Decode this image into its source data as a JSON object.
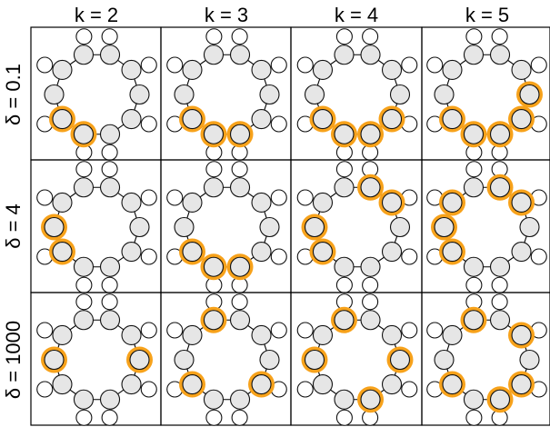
{
  "columns": [
    {
      "label": "k = 2",
      "k": 2
    },
    {
      "label": "k = 3",
      "k": 3
    },
    {
      "label": "k = 4",
      "k": 4
    },
    {
      "label": "k = 5",
      "k": 5
    }
  ],
  "rows": [
    {
      "label": "δ = 0.1",
      "delta": 0.1
    },
    {
      "label": "δ = 4",
      "delta": 4
    },
    {
      "label": "δ = 1000",
      "delta": 1000
    }
  ],
  "molecule": {
    "ring_size": 10,
    "hydrogen_per_atom": 2
  },
  "colors": {
    "ring_atom": "#e6e6e6",
    "hydrogen": "#ffffff",
    "highlight": "#f7a21b",
    "border": "#000000"
  },
  "selections": [
    [
      [
        8,
        9
      ],
      [
        7,
        8,
        9
      ],
      [
        6,
        7,
        8,
        9
      ],
      [
        5,
        6,
        7,
        8,
        9
      ]
    ],
    [
      [
        9,
        0
      ],
      [
        7,
        8,
        9
      ],
      [
        9,
        0,
        3,
        4
      ],
      [
        9,
        0,
        1,
        3,
        4
      ]
    ],
    [
      [
        0,
        5
      ],
      [
        6,
        9,
        2
      ],
      [
        5,
        0,
        2,
        7
      ],
      [
        6,
        9,
        7,
        2,
        4
      ]
    ]
  ]
}
